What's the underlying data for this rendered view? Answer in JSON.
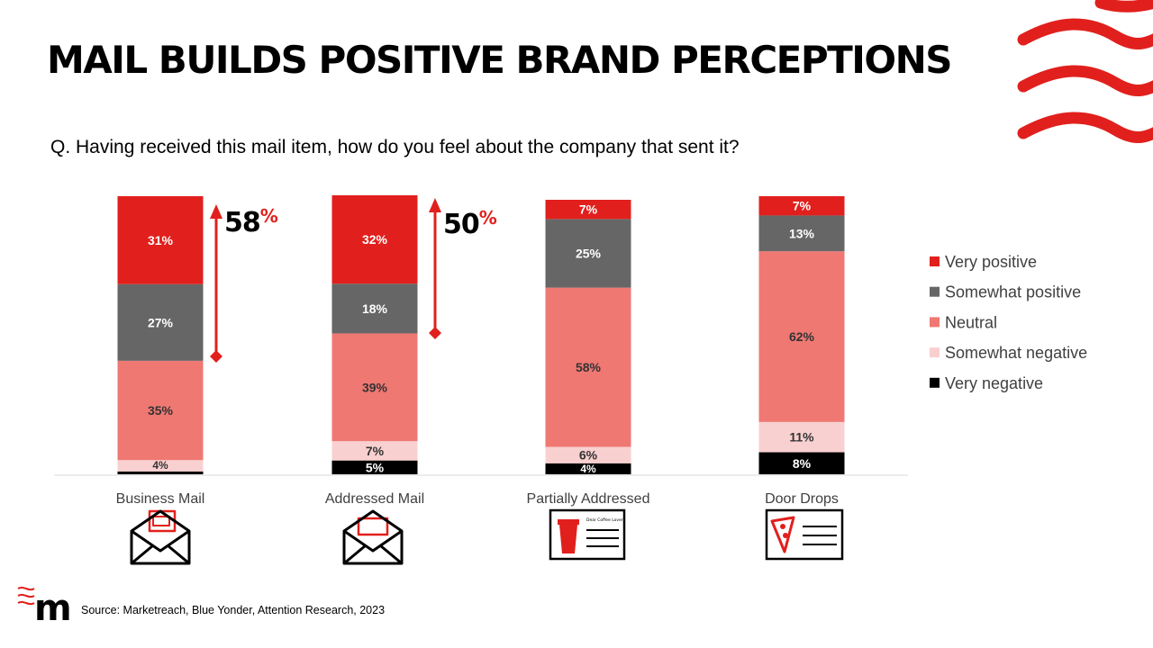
{
  "title": "MAIL BUILDS POSITIVE BRAND PERCEPTIONS",
  "question": "Q. Having received this mail item, how do you feel about the company that sent it?",
  "source": "Source: Marketreach, Blue Yonder, Attention Research, 2023",
  "logo_text": "m",
  "chart_data": {
    "type": "bar",
    "stacked": true,
    "normalized": true,
    "categories": [
      "Business Mail",
      "Addressed Mail",
      "Partially Addressed",
      "Door Drops"
    ],
    "series": [
      {
        "name": "Very negative",
        "color": "#000000",
        "label_color": "#ffffff",
        "values": [
          1,
          5,
          4,
          8
        ],
        "labels": [
          "",
          "5%",
          "4%",
          "8%"
        ]
      },
      {
        "name": "Somewhat negative",
        "color": "#f9d0d0",
        "label_color": "#333333",
        "values": [
          4,
          7,
          6,
          11
        ],
        "labels": [
          "4%",
          "7%",
          "6%",
          "11%"
        ]
      },
      {
        "name": "Neutral",
        "color": "#ef7873",
        "label_color": "#333333",
        "values": [
          35,
          39,
          58,
          62
        ],
        "labels": [
          "35%",
          "39%",
          "58%",
          "62%"
        ]
      },
      {
        "name": "Somewhat positive",
        "color": "#666666",
        "label_color": "#ffffff",
        "values": [
          27,
          18,
          25,
          13
        ],
        "labels": [
          "27%",
          "18%",
          "25%",
          "13%"
        ]
      },
      {
        "name": "Very positive",
        "color": "#e1201d",
        "label_color": "#ffffff",
        "values": [
          31,
          32,
          7,
          7
        ],
        "labels": [
          "31%",
          "32%",
          "7%",
          "7%"
        ]
      }
    ],
    "legend": {
      "position": "right",
      "order": [
        "Very positive",
        "Somewhat positive",
        "Neutral",
        "Somewhat negative",
        "Very negative"
      ]
    },
    "annotations": [
      {
        "category": "Business Mail",
        "value": "58",
        "unit": "%"
      },
      {
        "category": "Addressed Mail",
        "value": "50",
        "unit": "%"
      }
    ],
    "category_icons": [
      "envelope-icon",
      "envelope-icon",
      "coffee-letter-icon",
      "pizza-leaflet-icon"
    ],
    "icon_texts": {
      "coffee_letter": "Dear Coffee Lover"
    },
    "grid": false,
    "accent_color": "#e1201d"
  }
}
